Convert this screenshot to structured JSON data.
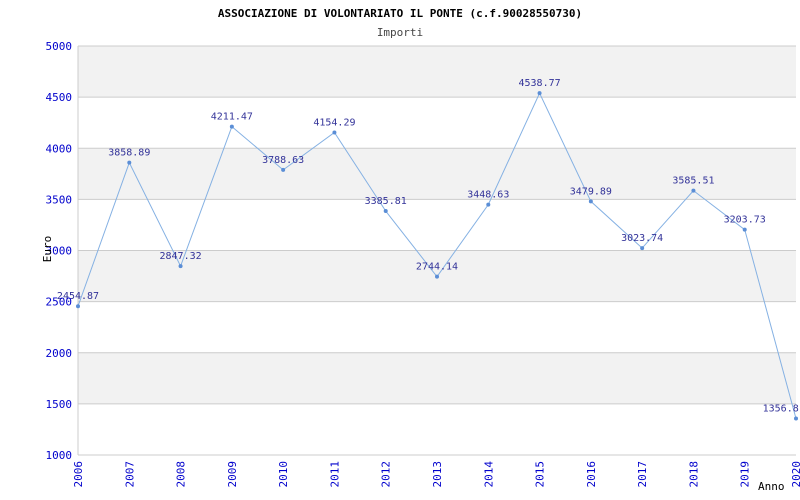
{
  "chart_data": {
    "type": "line",
    "title": "ASSOCIAZIONE DI VOLONTARIATO IL PONTE (c.f.90028550730)",
    "subtitle": "Importi",
    "xlabel": "Anno",
    "ylabel": "Euro",
    "categories": [
      "2006",
      "2007",
      "2008",
      "2009",
      "2010",
      "2011",
      "2012",
      "2013",
      "2014",
      "2015",
      "2016",
      "2017",
      "2018",
      "2019",
      "2020"
    ],
    "values": [
      2454.87,
      3858.89,
      2847.32,
      4211.47,
      3788.63,
      4154.29,
      3385.81,
      2744.14,
      3448.63,
      4538.77,
      3479.89,
      3023.74,
      3585.51,
      3203.73,
      1356.8
    ],
    "labels": [
      "2454.87",
      "3858.89",
      "2847.32",
      "4211.47",
      "3788.63",
      "4154.29",
      "3385.81",
      "2744.14",
      "3448.63",
      "4538.77",
      "3479.89",
      "3023.74",
      "3585.51",
      "3203.73",
      "1356.8"
    ],
    "ylim": [
      1000,
      5000
    ],
    "ytick_step": 500,
    "grid": true,
    "legend": "none",
    "colors": {
      "line": "#85b1e3",
      "point": "#5b8ed6",
      "value_label": "#333399",
      "tick_label": "#0000cc",
      "band": "#f2f2f2",
      "grid": "#cccccc",
      "title": "#000000",
      "subtitle": "#444444"
    }
  }
}
